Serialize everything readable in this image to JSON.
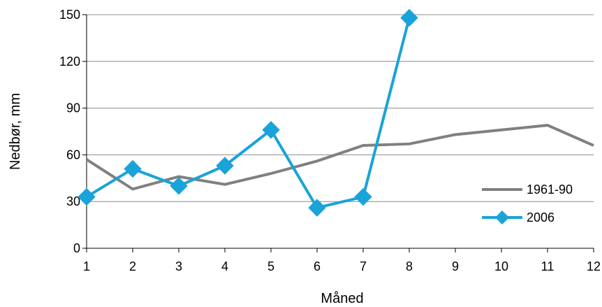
{
  "chart_data": {
    "type": "line",
    "title": "",
    "xlabel": "Måned",
    "ylabel": "Nedbør, mm",
    "x": [
      1,
      2,
      3,
      4,
      5,
      6,
      7,
      8,
      9,
      10,
      11,
      12
    ],
    "ylim": [
      0,
      150
    ],
    "yticks": [
      0,
      30,
      60,
      90,
      120,
      150
    ],
    "grid": "horizontal",
    "legend_position": "right",
    "series": [
      {
        "name": "1961-90",
        "color": "#808080",
        "marker": "none",
        "x": [
          1,
          2,
          3,
          4,
          5,
          6,
          7,
          8,
          9,
          10,
          11,
          12
        ],
        "values": [
          57,
          38,
          46,
          41,
          48,
          56,
          66,
          67,
          73,
          76,
          79,
          66
        ]
      },
      {
        "name": "2006",
        "color": "#1aa3d8",
        "marker": "diamond",
        "x": [
          1,
          2,
          3,
          4,
          5,
          6,
          7,
          8
        ],
        "values": [
          33,
          51,
          40,
          53,
          76,
          26,
          33,
          148
        ]
      }
    ]
  }
}
